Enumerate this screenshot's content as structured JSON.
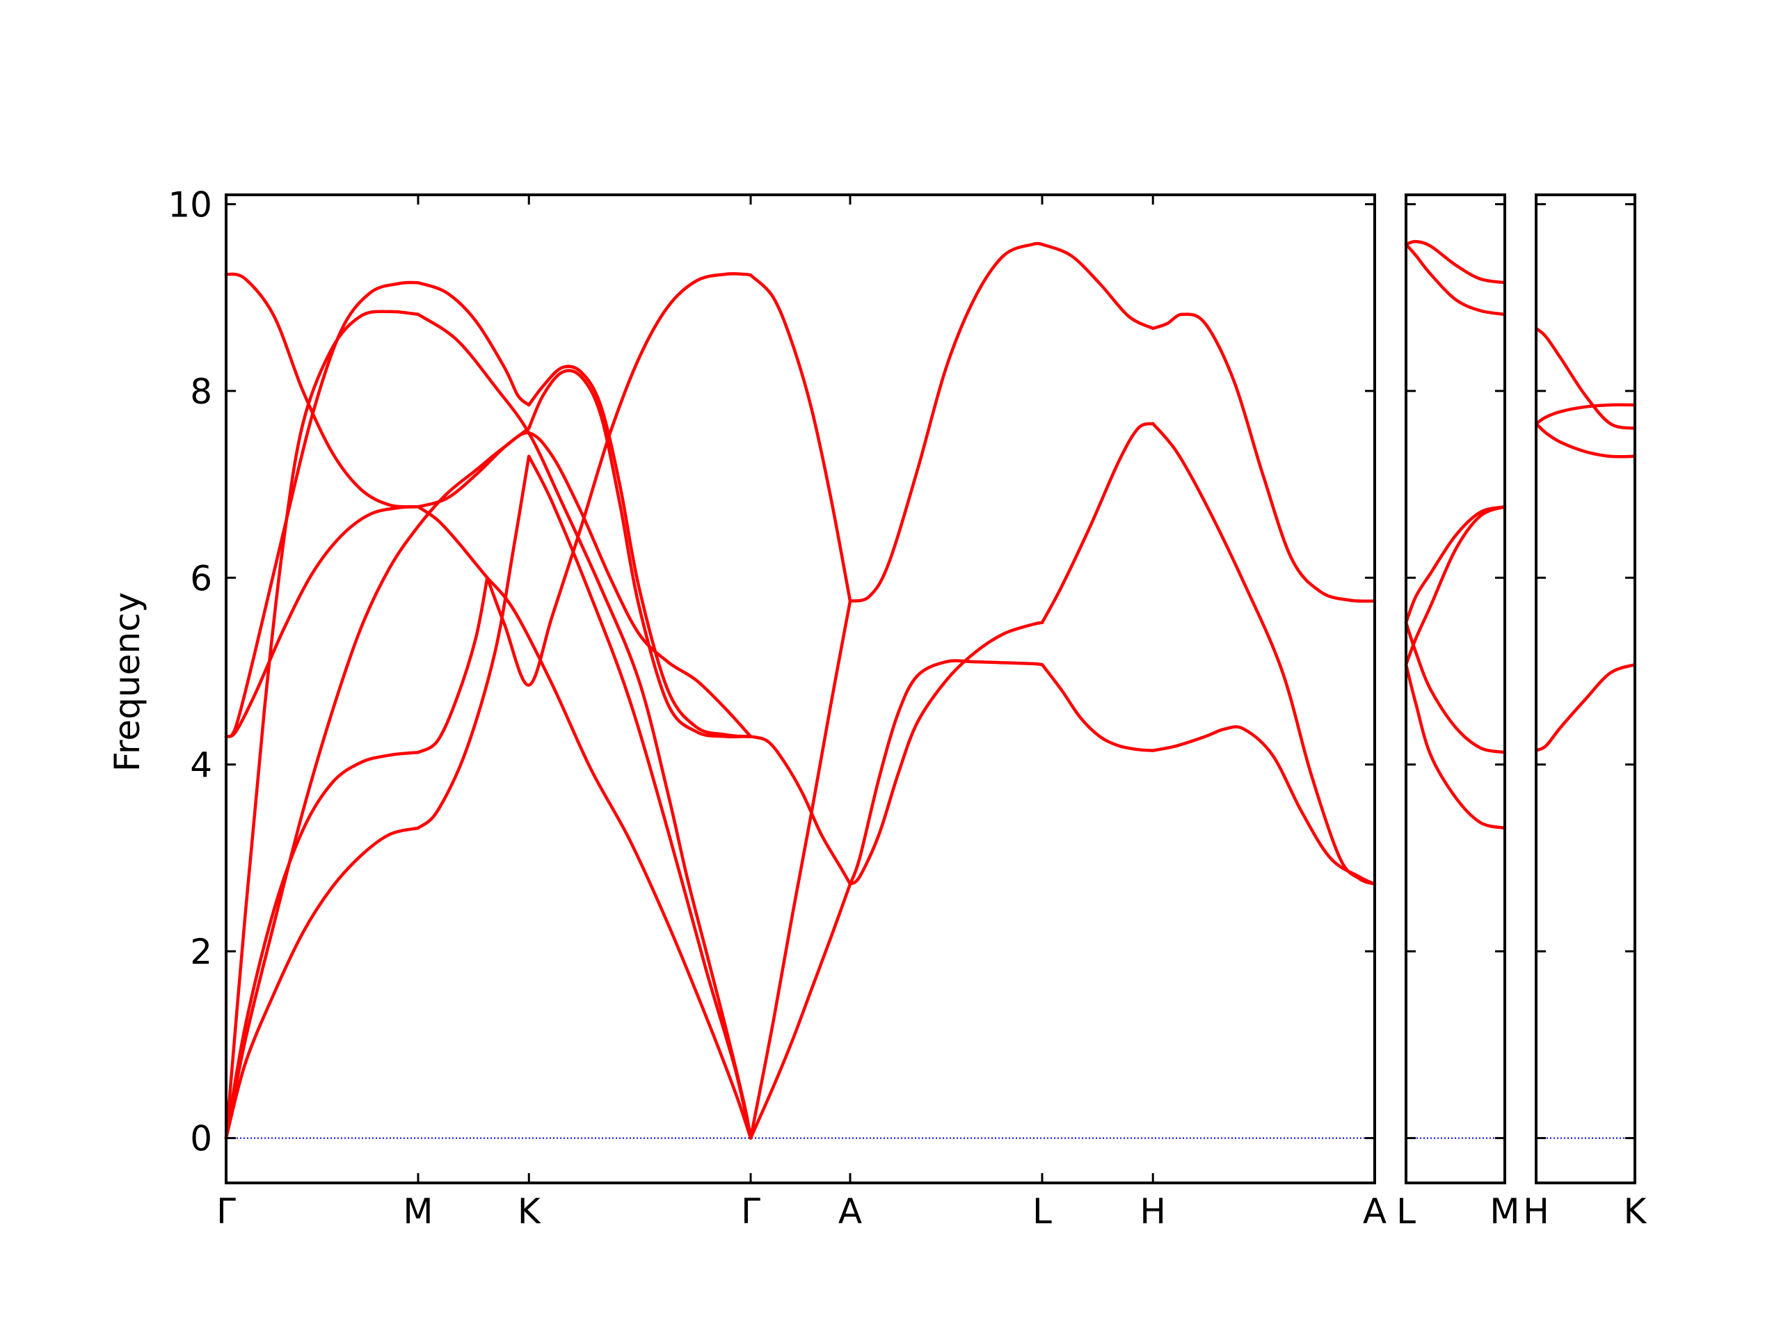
{
  "chart_data": {
    "type": "line",
    "ylabel": "Frequency",
    "ylim": [
      -0.48,
      10.1
    ],
    "yticks": [
      0,
      2,
      4,
      6,
      8,
      10
    ],
    "grid": false,
    "line_color": "#ff0000",
    "zero_line_color": "#0000ff",
    "panels": [
      {
        "xticks": [
          {
            "x": 0,
            "label": "Γ"
          },
          {
            "x": 1,
            "label": "M"
          },
          {
            "x": 1.577,
            "label": "K"
          },
          {
            "x": 2.732,
            "label": "Γ"
          },
          {
            "x": 3.25,
            "label": "A"
          },
          {
            "x": 4.25,
            "label": "L"
          },
          {
            "x": 4.827,
            "label": "H"
          },
          {
            "x": 5.982,
            "label": "A"
          }
        ],
        "series": [
          {
            "x": [
              0,
              0.1,
              0.25,
              0.4,
              0.55,
              0.7,
              0.85,
              1.0
            ],
            "y": [
              0,
              0.8,
              1.55,
              2.2,
              2.68,
              3.02,
              3.25,
              3.32
            ]
          },
          {
            "x": [
              1.0,
              1.1,
              1.25,
              1.4,
              1.5,
              1.577
            ],
            "y": [
              3.32,
              3.5,
              4.15,
              5.2,
              6.35,
              7.3
            ]
          },
          {
            "x": [
              1.577,
              1.7,
              1.9,
              2.1,
              2.3,
              2.5,
              2.65,
              2.732
            ],
            "y": [
              7.3,
              6.8,
              5.8,
              4.7,
              3.3,
              1.8,
              0.75,
              0
            ]
          },
          {
            "x": [
              0,
              0.1,
              0.25,
              0.4,
              0.55,
              0.7,
              0.85,
              1.0
            ],
            "y": [
              0,
              1.2,
              2.45,
              3.3,
              3.8,
              4.02,
              4.1,
              4.13
            ]
          },
          {
            "x": [
              1.0,
              1.1,
              1.2,
              1.3,
              1.36
            ],
            "y": [
              4.13,
              4.25,
              4.7,
              5.35,
              6.0
            ]
          },
          {
            "x": [
              1.36,
              1.5,
              1.7,
              1.9,
              2.1,
              2.3,
              2.5,
              2.65,
              2.732
            ],
            "y": [
              6.0,
              5.65,
              4.85,
              3.95,
              3.2,
              2.3,
              1.3,
              0.5,
              0
            ]
          },
          {
            "x": [
              0,
              0.1,
              0.2,
              0.3,
              0.4,
              0.55,
              0.7,
              0.85,
              1.0
            ],
            "y": [
              0,
              2.4,
              4.6,
              6.4,
              7.65,
              8.45,
              8.8,
              8.85,
              8.82
            ]
          },
          {
            "x": [
              1.0,
              1.2,
              1.4,
              1.577,
              1.75,
              1.95,
              2.15,
              2.3,
              2.4,
              2.5,
              2.6,
              2.7,
              2.732
            ],
            "y": [
              8.82,
              8.55,
              8.05,
              7.55,
              6.8,
              5.9,
              4.9,
              3.7,
              2.8,
              2.0,
              1.2,
              0.35,
              0
            ]
          },
          {
            "x": [
              0,
              0.05,
              0.15,
              0.3,
              0.45,
              0.6,
              0.75,
              0.9,
              1.0
            ],
            "y": [
              4.3,
              4.4,
              5.2,
              6.5,
              7.75,
              8.65,
              9.05,
              9.15,
              9.16
            ]
          },
          {
            "x": [
              1.0,
              1.15,
              1.3,
              1.45,
              1.52,
              1.577
            ],
            "y": [
              9.16,
              9.05,
              8.75,
              8.25,
              7.95,
              7.85
            ]
          },
          {
            "x": [
              1.577,
              1.65,
              1.75,
              1.85,
              1.95,
              2.05,
              2.15,
              2.3,
              2.45,
              2.6,
              2.7,
              2.732
            ],
            "y": [
              7.85,
              8.05,
              8.25,
              8.2,
              7.85,
              7.0,
              5.9,
              4.8,
              4.4,
              4.32,
              4.3,
              4.3
            ]
          },
          {
            "x": [
              0,
              0.05,
              0.15,
              0.3,
              0.45,
              0.6,
              0.75,
              0.9,
              1.0
            ],
            "y": [
              4.3,
              4.35,
              4.75,
              5.45,
              6.05,
              6.45,
              6.68,
              6.75,
              6.76
            ]
          },
          {
            "x": [
              1.0,
              1.15,
              1.3,
              1.45,
              1.577
            ],
            "y": [
              6.76,
              6.85,
              7.1,
              7.4,
              7.6
            ]
          },
          {
            "x": [
              1.577,
              1.65,
              1.75,
              1.85,
              1.95,
              2.05,
              2.15,
              2.3,
              2.45,
              2.6,
              2.7,
              2.732
            ],
            "y": [
              7.6,
              7.95,
              8.2,
              8.15,
              7.75,
              6.8,
              5.7,
              4.65,
              4.35,
              4.3,
              4.3,
              4.3
            ]
          },
          {
            "x": [
              0,
              0.1,
              0.25,
              0.4,
              0.55,
              0.7,
              0.85,
              1.0
            ],
            "y": [
              9.25,
              9.2,
              8.8,
              8.0,
              7.35,
              6.95,
              6.78,
              6.76
            ]
          },
          {
            "x": [
              1.0,
              1.1,
              1.2,
              1.3,
              1.36
            ],
            "y": [
              6.76,
              6.62,
              6.4,
              6.15,
              6.0
            ]
          },
          {
            "x": [
              1.36,
              1.45,
              1.577,
              1.7,
              1.85,
              2.0,
              2.15,
              2.3,
              2.45,
              2.6,
              2.7,
              2.732
            ],
            "y": [
              6.0,
              5.5,
              4.85,
              5.6,
              6.55,
              7.55,
              8.35,
              8.9,
              9.18,
              9.25,
              9.25,
              9.24
            ]
          },
          {
            "x": [
              0,
              0.1,
              0.25,
              0.4,
              0.55,
              0.7,
              0.85,
              1.0,
              1.15,
              1.3,
              1.45,
              1.577,
              1.7,
              1.85,
              2.0,
              2.15,
              2.3,
              2.45,
              2.6,
              2.732
            ],
            "y": [
              0,
              1.05,
              2.3,
              3.5,
              4.55,
              5.45,
              6.1,
              6.55,
              6.9,
              7.15,
              7.4,
              7.55,
              7.3,
              6.7,
              6.0,
              5.4,
              5.1,
              4.9,
              4.6,
              4.3
            ]
          },
          {
            "x": [
              2.732,
              2.85,
              2.95,
              3.05,
              3.15,
              3.25
            ],
            "y": [
              9.24,
              9.0,
              8.5,
              7.8,
              6.85,
              5.75
            ]
          },
          {
            "x": [
              2.732,
              2.85,
              2.95,
              3.05,
              3.15,
              3.25
            ],
            "y": [
              0,
              1.25,
              2.4,
              3.5,
              4.65,
              5.75
            ]
          },
          {
            "x": [
              2.732,
              2.85,
              2.95,
              3.05,
              3.15,
              3.25
            ],
            "y": [
              0,
              0.55,
              1.05,
              1.6,
              2.15,
              2.72
            ]
          },
          {
            "x": [
              2.732,
              2.82,
              2.9,
              3.0,
              3.1,
              3.2,
              3.25
            ],
            "y": [
              4.3,
              4.25,
              4.05,
              3.7,
              3.25,
              2.9,
              2.72
            ]
          },
          {
            "x": [
              3.25,
              3.35,
              3.45,
              3.6,
              3.75,
              3.9,
              4.05,
              4.2,
              4.25
            ],
            "y": [
              5.75,
              5.8,
              6.15,
              7.15,
              8.25,
              9.0,
              9.45,
              9.57,
              9.57
            ]
          },
          {
            "x": [
              4.25,
              4.4,
              4.55,
              4.7,
              4.827
            ],
            "y": [
              9.57,
              9.45,
              9.15,
              8.8,
              8.67
            ]
          },
          {
            "x": [
              4.827,
              4.9,
              4.98,
              5.1,
              5.25,
              5.4,
              5.55,
              5.7,
              5.85,
              5.982
            ],
            "y": [
              8.67,
              8.72,
              8.82,
              8.72,
              8.1,
              7.1,
              6.2,
              5.85,
              5.76,
              5.75
            ]
          },
          {
            "x": [
              3.25,
              3.3,
              3.4,
              3.5,
              3.6,
              3.75,
              3.9,
              4.05,
              4.2,
              4.25
            ],
            "y": [
              2.72,
              2.8,
              3.25,
              3.9,
              4.45,
              4.9,
              5.2,
              5.4,
              5.5,
              5.52
            ]
          },
          {
            "x": [
              4.25,
              4.35,
              4.5,
              4.65,
              4.75,
              4.827
            ],
            "y": [
              5.52,
              5.9,
              6.55,
              7.25,
              7.6,
              7.65
            ]
          },
          {
            "x": [
              4.827,
              4.95,
              5.1,
              5.3,
              5.5,
              5.65,
              5.8,
              5.9,
              5.982
            ],
            "y": [
              7.65,
              7.35,
              6.8,
              5.95,
              5.0,
              3.9,
              3.0,
              2.78,
              2.72
            ]
          },
          {
            "x": [
              3.25,
              3.3,
              3.4,
              3.5,
              3.6,
              3.75,
              3.9,
              4.05,
              4.2,
              4.25
            ],
            "y": [
              2.72,
              3.0,
              3.85,
              4.55,
              4.95,
              5.1,
              5.1,
              5.09,
              5.08,
              5.07
            ]
          },
          {
            "x": [
              4.25,
              4.35,
              4.45,
              4.55,
              4.65,
              4.75,
              4.827
            ],
            "y": [
              5.07,
              4.8,
              4.5,
              4.3,
              4.2,
              4.16,
              4.15
            ]
          },
          {
            "x": [
              4.827,
              4.95,
              5.1,
              5.2,
              5.3,
              5.45,
              5.6,
              5.75,
              5.9,
              5.982
            ],
            "y": [
              4.15,
              4.2,
              4.3,
              4.38,
              4.38,
              4.1,
              3.5,
              3.0,
              2.8,
              2.72
            ]
          }
        ]
      },
      {
        "xticks": [
          {
            "x": 0,
            "label": "L"
          },
          {
            "x": 1,
            "label": "M"
          }
        ],
        "series": [
          {
            "x": [
              0,
              0.1,
              0.25,
              0.5,
              0.75,
              1.0
            ],
            "y": [
              9.57,
              9.6,
              9.55,
              9.35,
              9.2,
              9.16
            ]
          },
          {
            "x": [
              0,
              0.1,
              0.25,
              0.5,
              0.75,
              1.0
            ],
            "y": [
              9.57,
              9.45,
              9.25,
              8.98,
              8.86,
              8.82
            ]
          },
          {
            "x": [
              0,
              0.1,
              0.25,
              0.5,
              0.75,
              1.0
            ],
            "y": [
              5.52,
              5.8,
              6.05,
              6.45,
              6.7,
              6.76
            ]
          },
          {
            "x": [
              0,
              0.1,
              0.25,
              0.5,
              0.75,
              1.0
            ],
            "y": [
              5.07,
              5.35,
              5.7,
              6.3,
              6.66,
              6.76
            ]
          },
          {
            "x": [
              0,
              0.1,
              0.25,
              0.5,
              0.75,
              1.0
            ],
            "y": [
              5.52,
              5.2,
              4.8,
              4.4,
              4.18,
              4.13
            ]
          },
          {
            "x": [
              0,
              0.1,
              0.25,
              0.5,
              0.75,
              1.0
            ],
            "y": [
              5.07,
              4.65,
              4.1,
              3.65,
              3.38,
              3.32
            ]
          }
        ]
      },
      {
        "xticks": [
          {
            "x": 0,
            "label": "H"
          },
          {
            "x": 1,
            "label": "K"
          }
        ],
        "series": [
          {
            "x": [
              0,
              0.1,
              0.25,
              0.5,
              0.75,
              1.0
            ],
            "y": [
              8.67,
              8.58,
              8.35,
              7.95,
              7.65,
              7.6
            ]
          },
          {
            "x": [
              0,
              0.1,
              0.25,
              0.5,
              0.75,
              1.0
            ],
            "y": [
              7.65,
              7.72,
              7.78,
              7.83,
              7.85,
              7.85
            ]
          },
          {
            "x": [
              0,
              0.1,
              0.25,
              0.5,
              0.75,
              1.0
            ],
            "y": [
              7.65,
              7.55,
              7.45,
              7.35,
              7.3,
              7.3
            ]
          },
          {
            "x": [
              0,
              0.1,
              0.25,
              0.5,
              0.75,
              1.0
            ],
            "y": [
              4.15,
              4.2,
              4.4,
              4.7,
              4.98,
              5.07
            ]
          }
        ]
      }
    ]
  }
}
